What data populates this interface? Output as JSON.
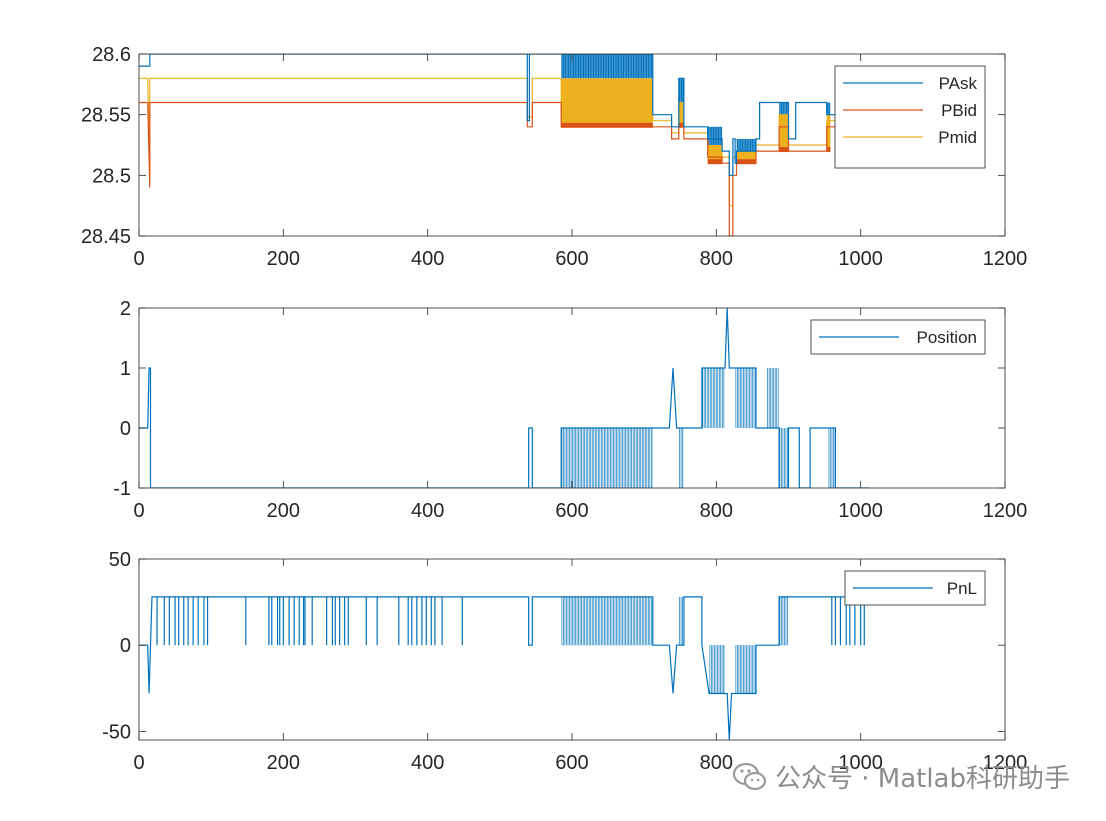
{
  "colors": {
    "series_1": "#0072BD",
    "series_2": "#D95319",
    "series_3": "#EDB120",
    "axes": "#262626",
    "watermark": "#8c8c8c"
  },
  "watermark": {
    "icon": "wechat-icon",
    "text": "公众号 · Matlab科研助手"
  },
  "chart_data": [
    {
      "type": "line",
      "xlim": [
        0,
        1200
      ],
      "ylim": [
        28.45,
        28.6
      ],
      "xticks": [
        "0",
        "200",
        "400",
        "600",
        "800",
        "1000",
        "1200"
      ],
      "yticks": [
        "28.45",
        "28.5",
        "28.55",
        "28.6"
      ],
      "legend": {
        "position": "top-right",
        "entries": [
          "PAsk",
          "PBid",
          "Pmid"
        ]
      },
      "series": [
        {
          "name": "PAsk",
          "color": "#0072BD",
          "x": [
            0,
            15,
            15,
            538,
            538,
            541,
            541,
            545,
            545,
            585,
            585,
            712,
            712,
            738,
            738,
            748,
            748,
            755,
            755,
            788,
            788,
            808,
            808,
            818,
            818,
            823,
            823,
            826,
            826,
            828,
            828,
            855,
            855,
            860,
            860,
            887,
            887,
            900,
            900,
            910,
            910,
            953,
            953,
            958,
            958,
            1012
          ],
          "y": [
            28.59,
            28.59,
            28.6,
            28.6,
            28.545,
            28.545,
            28.6,
            28.6,
            28.6,
            28.6,
            28.6,
            28.6,
            28.55,
            28.55,
            28.54,
            28.54,
            28.58,
            28.58,
            28.54,
            28.54,
            28.53,
            28.53,
            28.52,
            28.52,
            28.5,
            28.5,
            28.53,
            28.53,
            28.51,
            28.51,
            28.52,
            28.52,
            28.53,
            28.53,
            28.56,
            28.56,
            28.56,
            28.56,
            28.53,
            28.53,
            28.56,
            28.56,
            28.55,
            28.55,
            28.55,
            28.55
          ]
        },
        {
          "name": "PBid",
          "color": "#D95319",
          "x": [
            0,
            12,
            15,
            15,
            538,
            538,
            545,
            545,
            585,
            585,
            712,
            712,
            738,
            738,
            748,
            748,
            755,
            755,
            788,
            788,
            808,
            808,
            818,
            818,
            823,
            823,
            828,
            828,
            855,
            855,
            887,
            887,
            900,
            900,
            910,
            910,
            953,
            953,
            1012
          ],
          "y": [
            28.56,
            28.56,
            28.49,
            28.56,
            28.56,
            28.54,
            28.54,
            28.56,
            28.56,
            28.54,
            28.54,
            28.54,
            28.54,
            28.53,
            28.53,
            28.54,
            28.54,
            28.53,
            28.53,
            28.515,
            28.515,
            28.51,
            28.51,
            28.45,
            28.45,
            28.5,
            28.5,
            28.51,
            28.51,
            28.52,
            28.52,
            28.54,
            28.54,
            28.52,
            28.52,
            28.52,
            28.52,
            28.54,
            28.54
          ]
        },
        {
          "name": "Pmid",
          "color": "#EDB120",
          "x": [
            0,
            12,
            15,
            15,
            538,
            538,
            545,
            545,
            585,
            585,
            712,
            712,
            738,
            738,
            748,
            748,
            755,
            755,
            788,
            788,
            808,
            808,
            818,
            818,
            823,
            823,
            828,
            828,
            855,
            855,
            887,
            887,
            900,
            900,
            910,
            910,
            953,
            953,
            1012
          ],
          "y": [
            28.58,
            28.58,
            28.5,
            28.58,
            28.58,
            28.548,
            28.548,
            28.58,
            28.58,
            28.55,
            28.55,
            28.545,
            28.545,
            28.535,
            28.535,
            28.56,
            28.56,
            28.535,
            28.535,
            28.52,
            28.52,
            28.515,
            28.515,
            28.475,
            28.475,
            28.515,
            28.515,
            28.515,
            28.515,
            28.525,
            28.525,
            28.55,
            28.55,
            28.525,
            28.525,
            28.525,
            28.525,
            28.545,
            28.545
          ]
        }
      ],
      "bands": [
        {
          "x": [
            585,
            712
          ],
          "y_low": 28.54,
          "y_high": 28.6,
          "ask": 28.6,
          "bid": 28.54,
          "mid": 28.58
        },
        {
          "x": [
            748,
            755
          ],
          "y_low": 28.54,
          "y_high": 28.58,
          "ask": 28.58,
          "bid": 28.54,
          "mid": 28.56
        },
        {
          "x": [
            788,
            808
          ],
          "y_low": 28.51,
          "y_high": 28.54,
          "ask": 28.54,
          "bid": 28.51,
          "mid": 28.525
        },
        {
          "x": [
            828,
            855
          ],
          "y_low": 28.51,
          "y_high": 28.53,
          "ask": 28.53,
          "bid": 28.51,
          "mid": 28.52
        },
        {
          "x": [
            887,
            900
          ],
          "y_low": 28.52,
          "y_high": 28.56,
          "ask": 28.56,
          "bid": 28.52,
          "mid": 28.55
        },
        {
          "x": [
            953,
            958
          ],
          "y_low": 28.52,
          "y_high": 28.56,
          "ask": 28.56,
          "bid": 28.52,
          "mid": 28.55
        }
      ]
    },
    {
      "type": "line",
      "xlim": [
        0,
        1200
      ],
      "ylim": [
        -1,
        2
      ],
      "xticks": [
        "0",
        "200",
        "400",
        "600",
        "800",
        "1000",
        "1200"
      ],
      "yticks": [
        "-1",
        "0",
        "1",
        "2"
      ],
      "legend": {
        "position": "top-right",
        "entries": [
          "Position"
        ]
      },
      "series": [
        {
          "name": "Position",
          "color": "#0072BD",
          "x": [
            0,
            12,
            14,
            16,
            16,
            540,
            540,
            545,
            545,
            585,
            585,
            712,
            712,
            735,
            740,
            745,
            748,
            755,
            755,
            780,
            780,
            790,
            790,
            812,
            815,
            818,
            821,
            826,
            826,
            855,
            855,
            870,
            880,
            887,
            887,
            900,
            900,
            915,
            915,
            930,
            930,
            955,
            955,
            965,
            965,
            1012
          ],
          "y": [
            0,
            0,
            1,
            1,
            -1,
            -1,
            0,
            0,
            -1,
            -1,
            0,
            0,
            0,
            0,
            1,
            0,
            0,
            0,
            0,
            0,
            1,
            1,
            1,
            1,
            2,
            1,
            1,
            1,
            1,
            1,
            0,
            0,
            0,
            0,
            -1,
            -1,
            0,
            0,
            -1,
            -1,
            0,
            0,
            0,
            0,
            -1,
            -1
          ]
        }
      ],
      "bands": [
        {
          "x": [
            585,
            712
          ],
          "y_low": -1,
          "y_high": 0
        },
        {
          "x": [
            748,
            755
          ],
          "y_low": -1,
          "y_high": 0
        },
        {
          "x": [
            780,
            812
          ],
          "y_low": 0,
          "y_high": 1
        },
        {
          "x": [
            826,
            855
          ],
          "y_low": 0,
          "y_high": 1
        },
        {
          "x": [
            870,
            887
          ],
          "y_low": 0,
          "y_high": 1
        },
        {
          "x": [
            887,
            900
          ],
          "y_low": -1,
          "y_high": 0
        },
        {
          "x": [
            955,
            965
          ],
          "y_low": -1,
          "y_high": 0
        }
      ]
    },
    {
      "type": "line",
      "xlim": [
        0,
        1200
      ],
      "ylim": [
        -55,
        50
      ],
      "xticks": [
        "0",
        "200",
        "400",
        "600",
        "800",
        "1000",
        "1200"
      ],
      "yticks": [
        "-50",
        "0",
        "50"
      ],
      "legend": {
        "position": "top-right",
        "entries": [
          "PnL"
        ]
      },
      "series": [
        {
          "name": "PnL",
          "color": "#0072BD",
          "x": [
            0,
            12,
            14,
            16,
            18,
            18,
            540,
            540,
            545,
            545,
            585,
            585,
            712,
            712,
            735,
            740,
            745,
            748,
            755,
            755,
            780,
            780,
            790,
            790,
            812,
            815,
            818,
            821,
            826,
            826,
            855,
            855,
            870,
            880,
            887,
            887,
            900,
            900,
            1012
          ],
          "y": [
            0,
            0,
            -28,
            0,
            28,
            28,
            28,
            0,
            0,
            28,
            28,
            28,
            28,
            0,
            0,
            -28,
            0,
            0,
            0,
            28,
            28,
            0,
            -28,
            -28,
            -28,
            -28,
            -55,
            -28,
            -28,
            -28,
            -28,
            0,
            0,
            0,
            0,
            28,
            28,
            28,
            28
          ]
        }
      ],
      "spikes_x": [
        25,
        35,
        42,
        50,
        55,
        62,
        68,
        75,
        82,
        90,
        95,
        148,
        180,
        184,
        192,
        195,
        200,
        208,
        215,
        222,
        228,
        230,
        240,
        260,
        268,
        272,
        278,
        285,
        290,
        315,
        330,
        360,
        373,
        378,
        385,
        392,
        398,
        405,
        410,
        420,
        448,
        960,
        965,
        972,
        980,
        985,
        992,
        1000,
        1005
      ],
      "spike_low": 0,
      "spike_high": 28,
      "bands": [
        {
          "x": [
            585,
            712
          ],
          "y_low": 0,
          "y_high": 28
        },
        {
          "x": [
            748,
            755
          ],
          "y_low": 0,
          "y_high": 28
        },
        {
          "x": [
            790,
            812
          ],
          "y_low": -28,
          "y_high": 0
        },
        {
          "x": [
            826,
            855
          ],
          "y_low": -28,
          "y_high": 0
        },
        {
          "x": [
            887,
            900
          ],
          "y_low": 0,
          "y_high": 28
        }
      ]
    }
  ]
}
